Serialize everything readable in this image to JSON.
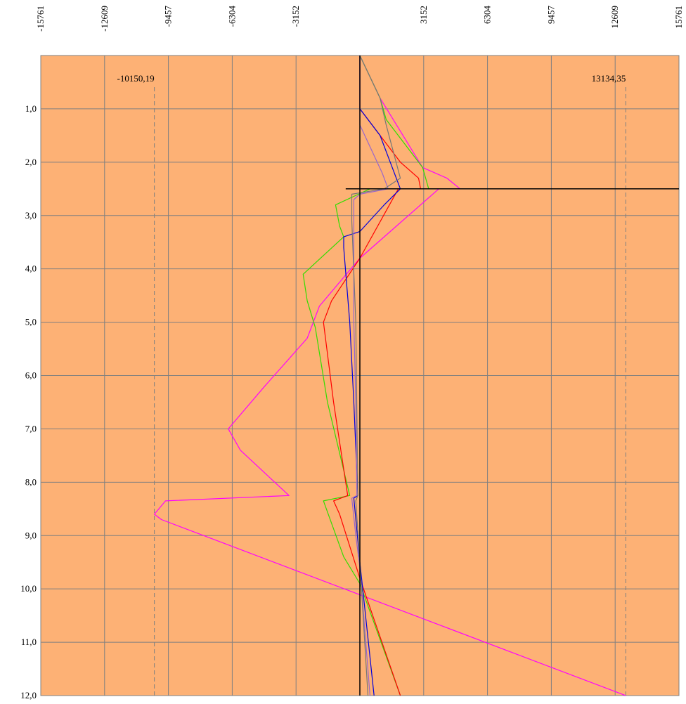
{
  "chart_data": {
    "type": "line",
    "orientation": "vertical-depth",
    "title": "",
    "xlabel": "",
    "ylabel": "",
    "xlim": [
      -15761,
      15761
    ],
    "ylim": [
      0,
      12
    ],
    "y_inverted": true,
    "grid": true,
    "legend": "none",
    "background": "#FDB175",
    "x_ticks": [
      "-15761",
      "-12609",
      "-9457",
      "-6304",
      "-3152",
      "3152",
      "6304",
      "9457",
      "12609",
      "15761"
    ],
    "x_tick_values": [
      -15761,
      -12609,
      -9457,
      -6304,
      -3152,
      3152,
      6304,
      9457,
      12609,
      15761
    ],
    "y_ticks": [
      "1,0",
      "2,0",
      "3,0",
      "4,0",
      "5,0",
      "6,0",
      "7,0",
      "8,0",
      "9,0",
      "10,0",
      "11,0",
      "12,0"
    ],
    "y_tick_values": [
      1,
      2,
      3,
      4,
      5,
      6,
      7,
      8,
      9,
      10,
      11,
      12
    ],
    "annotations": [
      {
        "text": "-10150,19",
        "x": -10150.19,
        "dashed_line": true
      },
      {
        "text": "13134,35",
        "x": 13134.35,
        "dashed_line": true
      }
    ],
    "zero_line": {
      "x": 0
    },
    "marker_line": {
      "y": 2.5,
      "x_from": -700,
      "x_to": 15761
    },
    "series": [
      {
        "color": "#FF00FF",
        "points": [
          [
            0,
            0
          ],
          [
            1000,
            0.8
          ],
          [
            3100,
            2.1
          ],
          [
            4300,
            2.3
          ],
          [
            4950,
            2.5
          ],
          [
            3900,
            2.5
          ],
          [
            0,
            3.8
          ],
          [
            -2000,
            4.7
          ],
          [
            -2600,
            5.3
          ],
          [
            -4700,
            6.2
          ],
          [
            -6500,
            7.0
          ],
          [
            -5900,
            7.4
          ],
          [
            -3500,
            8.25
          ],
          [
            -9600,
            8.35
          ],
          [
            -10150,
            8.6
          ],
          [
            -9800,
            8.7
          ],
          [
            13134,
            12.0
          ]
        ]
      },
      {
        "color": "#33DD00",
        "points": [
          [
            0,
            0
          ],
          [
            1000,
            0.8
          ],
          [
            1300,
            1.2
          ],
          [
            3100,
            2.1
          ],
          [
            3400,
            2.5
          ],
          [
            500,
            2.5
          ],
          [
            -1200,
            2.8
          ],
          [
            -1000,
            3.2
          ],
          [
            -800,
            3.4
          ],
          [
            -2800,
            4.1
          ],
          [
            -2600,
            4.6
          ],
          [
            -2200,
            5.1
          ],
          [
            -1600,
            6.5
          ],
          [
            -500,
            8.25
          ],
          [
            -1800,
            8.35
          ],
          [
            -800,
            9.4
          ],
          [
            0,
            9.9
          ],
          [
            2000,
            12.0
          ]
        ]
      },
      {
        "color": "#FF0000",
        "points": [
          [
            0,
            0
          ],
          [
            0,
            1.0
          ],
          [
            2000,
            2.0
          ],
          [
            2900,
            2.3
          ],
          [
            3000,
            2.5
          ],
          [
            1900,
            2.5
          ],
          [
            0,
            3.8
          ],
          [
            -1400,
            4.6
          ],
          [
            -1800,
            5.0
          ],
          [
            -1300,
            6.5
          ],
          [
            -600,
            8.25
          ],
          [
            -1300,
            8.35
          ],
          [
            -1000,
            8.6
          ],
          [
            0,
            9.8
          ],
          [
            2000,
            12.0
          ]
        ]
      },
      {
        "color": "#0000DD",
        "points": [
          [
            0,
            0
          ],
          [
            0,
            1.0
          ],
          [
            1000,
            1.5
          ],
          [
            2000,
            2.5
          ],
          [
            1200,
            2.8
          ],
          [
            0,
            3.3
          ],
          [
            -800,
            3.4
          ],
          [
            -800,
            3.6
          ],
          [
            -500,
            5.0
          ],
          [
            -300,
            6.5
          ],
          [
            -100,
            8.25
          ],
          [
            -300,
            8.3
          ],
          [
            0,
            9.5
          ],
          [
            700,
            12.0
          ]
        ]
      },
      {
        "color": "#9966CC",
        "points": [
          [
            0,
            0
          ],
          [
            0,
            1.3
          ],
          [
            1100,
            2.2
          ],
          [
            1400,
            2.5
          ],
          [
            0,
            2.6
          ],
          [
            -300,
            2.7
          ],
          [
            -300,
            3.4
          ],
          [
            -300,
            5.0
          ],
          [
            -200,
            6.5
          ],
          [
            -150,
            8.25
          ],
          [
            -400,
            8.3
          ],
          [
            -200,
            9.0
          ],
          [
            0,
            9.6
          ],
          [
            500,
            12.0
          ]
        ]
      },
      {
        "color": "#777777",
        "points": [
          [
            0,
            0
          ],
          [
            1000,
            0.8
          ],
          [
            1300,
            1.3
          ],
          [
            2000,
            2.3
          ],
          [
            1200,
            2.5
          ],
          [
            -400,
            2.6
          ],
          [
            -400,
            3.1
          ],
          [
            -200,
            5.0
          ],
          [
            -100,
            8.25
          ],
          [
            -200,
            8.35
          ],
          [
            0,
            9.5
          ],
          [
            400,
            12.0
          ]
        ]
      }
    ]
  }
}
